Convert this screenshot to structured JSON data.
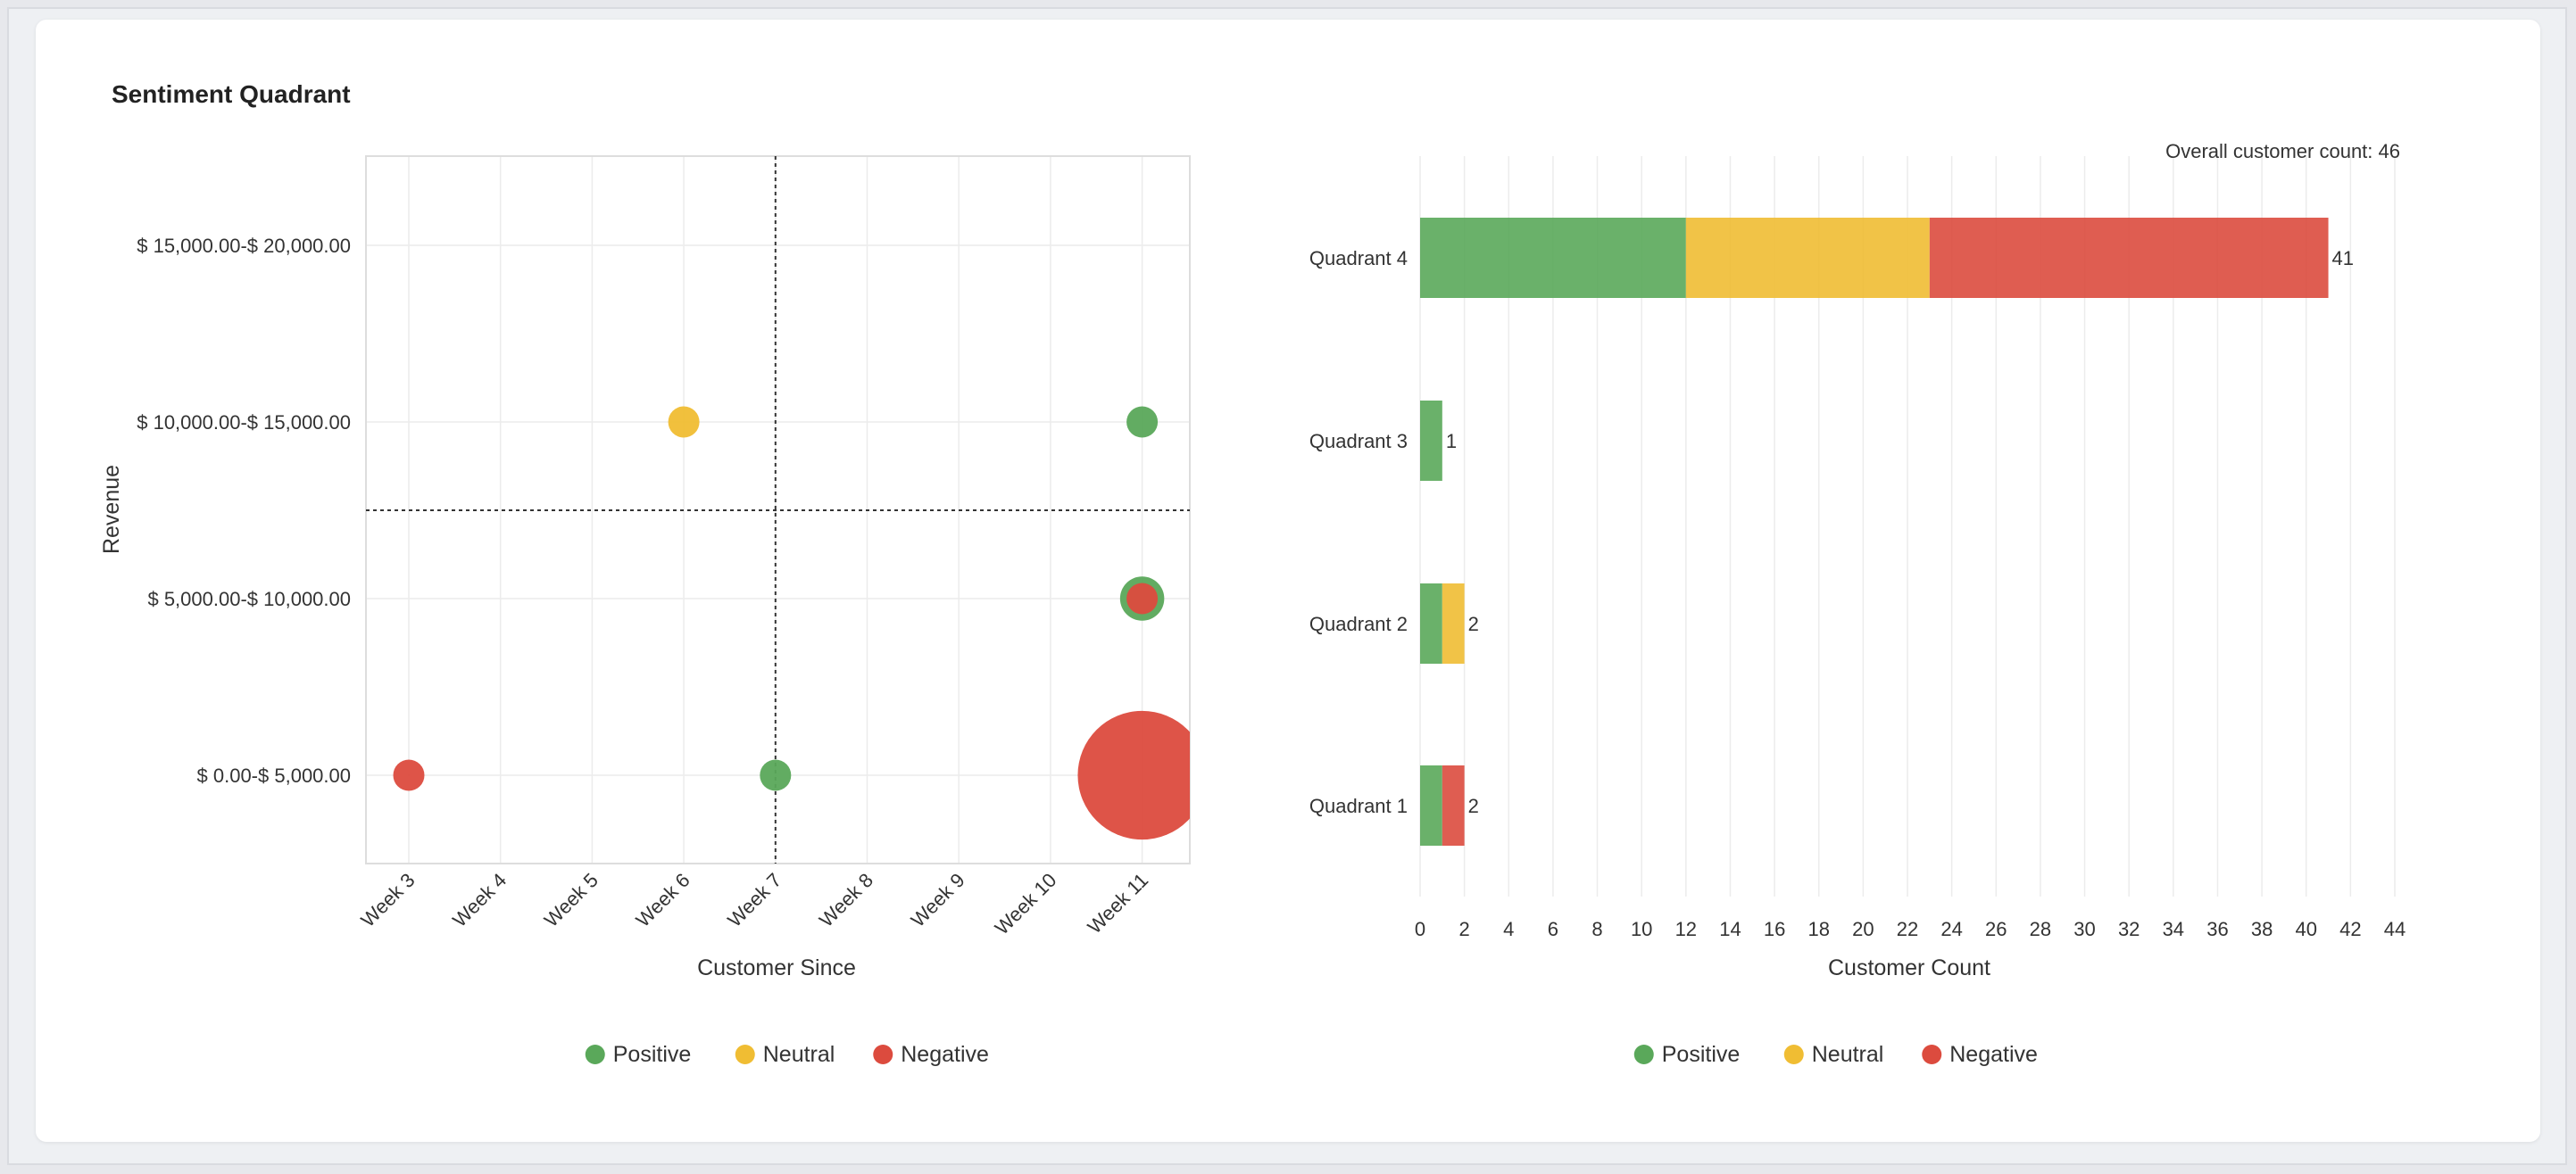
{
  "page": {
    "title": "Sentiment Quadrant"
  },
  "colors": {
    "positive": "#5aa85a",
    "neutral": "#f0bd33",
    "negative": "#dc4b3e"
  },
  "chart_data": [
    {
      "type": "scatter",
      "subtype": "bubble",
      "xlabel": "Customer Since",
      "ylabel": "Revenue",
      "categories_x": [
        "Week 3",
        "Week 4",
        "Week 5",
        "Week 6",
        "Week 7",
        "Week 8",
        "Week 9",
        "Week 10",
        "Week 11"
      ],
      "categories_y": [
        "$ 0.00-$ 5,000.00",
        "$ 5,000.00-$ 10,000.00",
        "$ 10,000.00-$ 15,000.00",
        "$ 15,000.00-$ 20,000.00"
      ],
      "quadrant_divider": {
        "x": "Week 7",
        "y": "$ 10,000.00"
      },
      "legend": [
        "Positive",
        "Neutral",
        "Negative"
      ],
      "legend_position": "bottom",
      "points": [
        {
          "x": "Week 3",
          "y": "$ 0.00-$ 5,000.00",
          "sentiment": "Negative",
          "count": 1
        },
        {
          "x": "Week 6",
          "y": "$ 10,000.00-$ 15,000.00",
          "sentiment": "Neutral",
          "count": 1
        },
        {
          "x": "Week 7",
          "y": "$ 0.00-$ 5,000.00",
          "sentiment": "Positive",
          "count": 1
        },
        {
          "x": "Week 11",
          "y": "$ 10,000.00-$ 15,000.00",
          "sentiment": "Positive",
          "count": 1
        },
        {
          "x": "Week 11",
          "y": "$ 5,000.00-$ 10,000.00",
          "sentiment": "Positive",
          "count": 2
        },
        {
          "x": "Week 11",
          "y": "$ 5,000.00-$ 10,000.00",
          "sentiment": "Negative",
          "count": 1
        },
        {
          "x": "Week 11",
          "y": "$ 0.00-$ 5,000.00",
          "sentiment": "Negative",
          "count": 17
        }
      ],
      "grid": true
    },
    {
      "type": "bar",
      "orientation": "horizontal",
      "stacked": true,
      "annotation": "Overall customer count: 46",
      "categories": [
        "Quadrant 4",
        "Quadrant 3",
        "Quadrant 2",
        "Quadrant 1"
      ],
      "series": [
        {
          "name": "Positive",
          "values": [
            12,
            1,
            1,
            1
          ]
        },
        {
          "name": "Neutral",
          "values": [
            11,
            0,
            1,
            0
          ]
        },
        {
          "name": "Negative",
          "values": [
            18,
            0,
            0,
            1
          ]
        }
      ],
      "totals": [
        "41",
        "1",
        "2",
        "2"
      ],
      "xlabel": "Customer Count",
      "xlim": [
        0,
        44
      ],
      "xticks": [
        "0",
        "2",
        "4",
        "6",
        "8",
        "10",
        "12",
        "14",
        "16",
        "18",
        "20",
        "22",
        "24",
        "26",
        "28",
        "30",
        "32",
        "34",
        "36",
        "38",
        "40",
        "42",
        "44"
      ],
      "legend": [
        "Positive",
        "Neutral",
        "Negative"
      ],
      "legend_position": "bottom",
      "grid": true
    }
  ]
}
